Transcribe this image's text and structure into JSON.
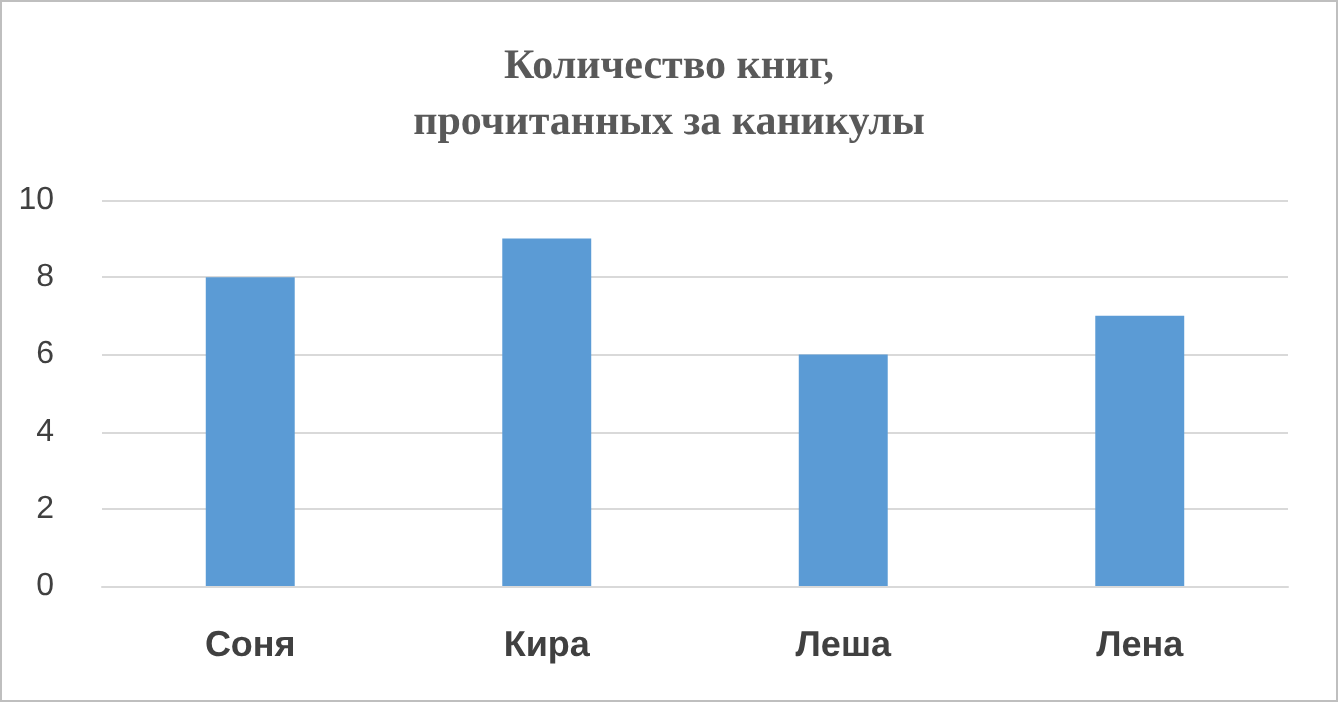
{
  "chart_data": {
    "type": "bar",
    "title": "Количество книг,\nпрочитанных за каникулы",
    "categories": [
      "Соня",
      "Кира",
      "Леша",
      "Лена"
    ],
    "values": [
      8,
      9,
      6,
      7
    ],
    "color": "#5b9bd5",
    "ylim": [
      0,
      10
    ],
    "yticks": [
      0,
      2,
      4,
      6,
      8,
      10
    ],
    "grid": "y"
  }
}
